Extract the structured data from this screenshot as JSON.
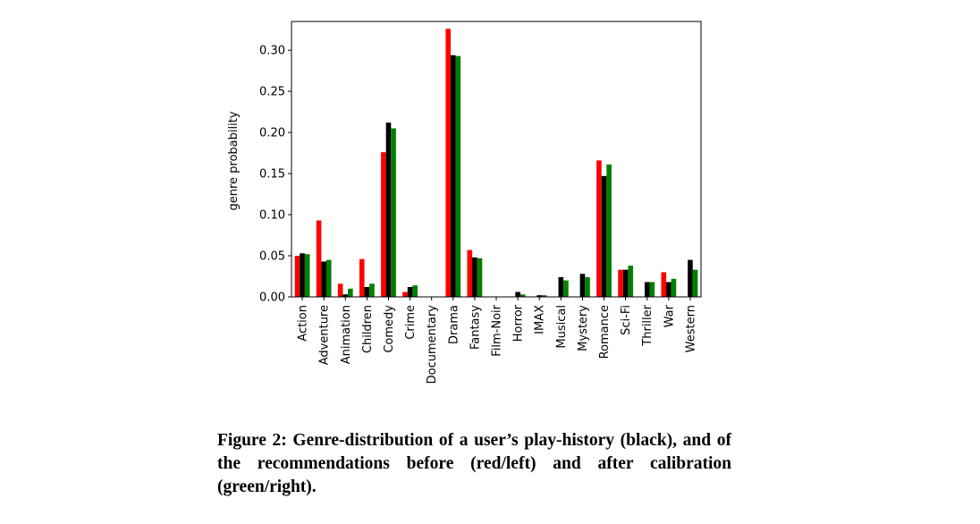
{
  "chart_data": {
    "type": "bar",
    "title": "",
    "xlabel": "",
    "ylabel": "genre probability",
    "ylim": [
      0,
      0.335
    ],
    "yticks": [
      "0.00",
      "0.05",
      "0.10",
      "0.15",
      "0.20",
      "0.25",
      "0.30"
    ],
    "grid": false,
    "categories": [
      "Action",
      "Adventure",
      "Animation",
      "Children",
      "Comedy",
      "Crime",
      "Documentary",
      "Drama",
      "Fantasy",
      "Film-Noir",
      "Horror",
      "IMAX",
      "Musical",
      "Mystery",
      "Romance",
      "Sci-Fi",
      "Thriller",
      "War",
      "Western"
    ],
    "series": [
      {
        "name": "recommendations before calibration",
        "color": "#ff0000",
        "values": [
          0.05,
          0.093,
          0.016,
          0.046,
          0.176,
          0.006,
          0.0,
          0.326,
          0.057,
          0.0,
          0.0,
          0.0,
          0.0,
          0.0,
          0.166,
          0.033,
          0.0,
          0.03,
          0.0
        ]
      },
      {
        "name": "play-history",
        "color": "#000000",
        "values": [
          0.053,
          0.043,
          0.003,
          0.012,
          0.212,
          0.012,
          0.0,
          0.294,
          0.048,
          0.0,
          0.006,
          0.002,
          0.024,
          0.028,
          0.147,
          0.033,
          0.018,
          0.018,
          0.045
        ]
      },
      {
        "name": "recommendations after calibration",
        "color": "#008000",
        "values": [
          0.052,
          0.045,
          0.01,
          0.016,
          0.205,
          0.014,
          0.0,
          0.293,
          0.047,
          0.0,
          0.003,
          0.002,
          0.02,
          0.024,
          0.161,
          0.038,
          0.018,
          0.022,
          0.033
        ]
      }
    ]
  },
  "caption": "Figure 2: Genre-distribution of a user’s play-history (black), and of the recommendations before (red/left) and after calibration (green/right)."
}
